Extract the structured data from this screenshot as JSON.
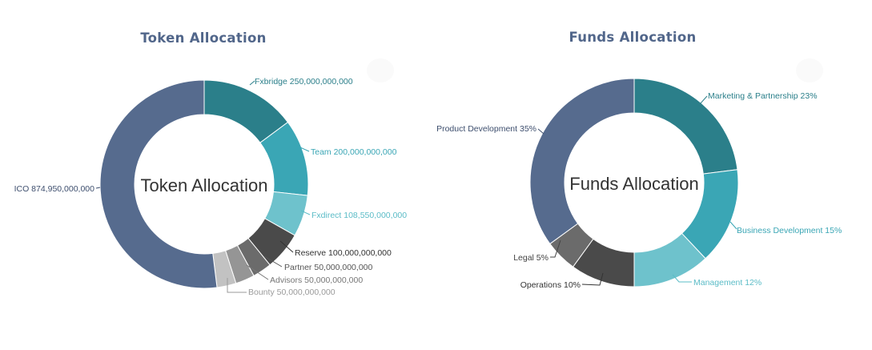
{
  "charts": [
    {
      "id": "token",
      "title": "Token Allocation",
      "center_label": "Token Allocation",
      "cx": 255,
      "cy": 230,
      "r_out": 130,
      "r_in": 87
    },
    {
      "id": "funds",
      "title": "Funds Allocation",
      "center_label": "Funds Allocation",
      "cx": 792,
      "cy": 228,
      "r_out": 130,
      "r_in": 87
    }
  ],
  "chart_data": [
    {
      "type": "pie",
      "title": "Token Allocation",
      "unit": "tokens",
      "slices": [
        {
          "name": "Fxbridge",
          "value": 250000000000,
          "label": "Fxbridge 250,000,000,000",
          "color": "#2b7f8a",
          "label_color": "#2b7f8a"
        },
        {
          "name": "Team",
          "value": 200000000000,
          "label": "Team 200,000,000,000",
          "color": "#3aa6b5",
          "label_color": "#3aa6b5"
        },
        {
          "name": "Fxdirect",
          "value": 108550000000,
          "label": "Fxdirect 108,550,000,000",
          "color": "#6ec2cc",
          "label_color": "#5bbcc7"
        },
        {
          "name": "Reserve",
          "value": 100000000000,
          "label": "Reserve 100,000,000,000",
          "color": "#4a4a4a",
          "label_color": "#333333"
        },
        {
          "name": "Partner",
          "value": 50000000000,
          "label": "Partner 50,000,000,000",
          "color": "#6b6b6b",
          "label_color": "#555555"
        },
        {
          "name": "Advisors",
          "value": 50000000000,
          "label": "Advisors 50,000,000,000",
          "color": "#959595",
          "label_color": "#777777"
        },
        {
          "name": "Bounty",
          "value": 50000000000,
          "label": "Bounty 50,000,000,000",
          "color": "#c2c2c2",
          "label_color": "#9a9a9a"
        },
        {
          "name": "ICO",
          "value": 874950000000,
          "label": "ICO 874,950,000,000",
          "color": "#566b8e",
          "label_color": "#3e4f6e"
        }
      ]
    },
    {
      "type": "pie",
      "title": "Funds Allocation",
      "unit": "%",
      "slices": [
        {
          "name": "Marketing & Partnership",
          "value": 23,
          "label": "Marketing & Partnership 23%",
          "color": "#2b7f8a",
          "label_color": "#2b7f8a"
        },
        {
          "name": "Business Development",
          "value": 15,
          "label": "Business Development 15%",
          "color": "#3aa6b5",
          "label_color": "#3aa6b5"
        },
        {
          "name": "Management",
          "value": 12,
          "label": "Management 12%",
          "color": "#6ec2cc",
          "label_color": "#5bbcc7"
        },
        {
          "name": "Operations",
          "value": 10,
          "label": "Operations 10%",
          "color": "#4a4a4a",
          "label_color": "#333333"
        },
        {
          "name": "Legal",
          "value": 5,
          "label": "Legal 5%",
          "color": "#6b6b6b",
          "label_color": "#444444"
        },
        {
          "name": "Product Development",
          "value": 35,
          "label": "Product Development 35%",
          "color": "#566b8e",
          "label_color": "#3e4f6e"
        }
      ]
    }
  ]
}
